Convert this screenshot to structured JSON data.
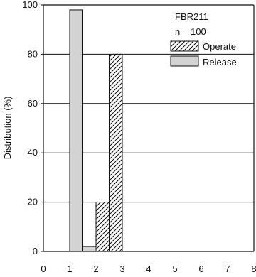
{
  "chart_data": {
    "type": "bar",
    "xlabel": "",
    "ylabel": "Distribution (%)",
    "xlim": [
      0,
      8
    ],
    "ylim": [
      0,
      100
    ],
    "x_ticks": [
      0,
      1,
      2,
      3,
      4,
      5,
      6,
      7,
      8
    ],
    "y_ticks": [
      0,
      20,
      40,
      60,
      80,
      100
    ],
    "grid": {
      "horizontal": true,
      "vertical": false
    },
    "legend": {
      "title_lines": [
        "FBR211",
        "n = 100"
      ],
      "placement": "top-right"
    },
    "series": [
      {
        "name": "Release",
        "fill": "#d3d3d3",
        "pattern": "solid",
        "bars": [
          {
            "x_start": 1.0,
            "x_end": 1.5,
            "value": 98
          },
          {
            "x_start": 1.5,
            "x_end": 2.0,
            "value": 2
          }
        ]
      },
      {
        "name": "Operate",
        "fill": "#ffffff",
        "pattern": "diagonal-hatch",
        "bars": [
          {
            "x_start": 2.0,
            "x_end": 2.5,
            "value": 20
          },
          {
            "x_start": 2.5,
            "x_end": 3.0,
            "value": 80
          }
        ]
      }
    ]
  }
}
